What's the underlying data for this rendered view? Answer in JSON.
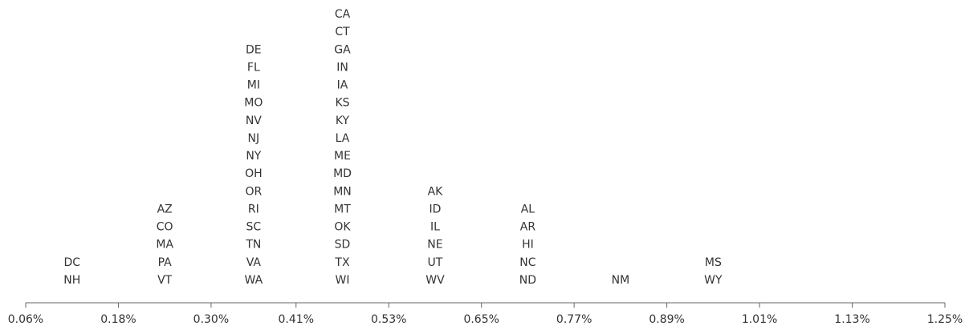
{
  "chart_data": {
    "type": "label-stack",
    "xlim": [
      0.06,
      1.25
    ],
    "xticks": [
      {
        "value": 0.06,
        "label": "0.06%"
      },
      {
        "value": 0.18,
        "label": "0.18%"
      },
      {
        "value": 0.3,
        "label": "0.30%"
      },
      {
        "value": 0.41,
        "label": "0.41%"
      },
      {
        "value": 0.53,
        "label": "0.53%"
      },
      {
        "value": 0.65,
        "label": "0.65%"
      },
      {
        "value": 0.77,
        "label": "0.77%"
      },
      {
        "value": 0.89,
        "label": "0.89%"
      },
      {
        "value": 1.01,
        "label": "1.01%"
      },
      {
        "value": 1.13,
        "label": "1.13%"
      },
      {
        "value": 1.25,
        "label": "1.25%"
      }
    ],
    "groups": [
      [
        "DC",
        "NH"
      ],
      [
        "AZ",
        "CO",
        "MA",
        "PA",
        "VT"
      ],
      [
        "DE",
        "FL",
        "MI",
        "MO",
        "NV",
        "NJ",
        "NY",
        "OH",
        "OR",
        "RI",
        "SC",
        "TN",
        "VA",
        "WA"
      ],
      [
        "CA",
        "CT",
        "GA",
        "IN",
        "IA",
        "KS",
        "KY",
        "LA",
        "ME",
        "MD",
        "MN",
        "MT",
        "OK",
        "SD",
        "TX",
        "WI"
      ],
      [
        "AK",
        "ID",
        "IL",
        "NE",
        "UT",
        "WV"
      ],
      [
        "AL",
        "AR",
        "HI",
        "NC",
        "ND"
      ],
      [
        "NM"
      ],
      [
        "MS",
        "WY"
      ],
      [],
      []
    ]
  }
}
